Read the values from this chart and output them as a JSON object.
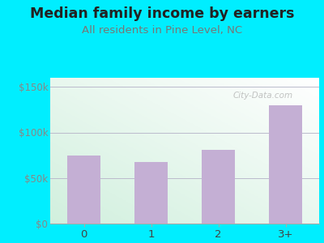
{
  "title": "Median family income by earners",
  "subtitle": "All residents in Pine Level, NC",
  "categories": [
    "0",
    "1",
    "2",
    "3+"
  ],
  "values": [
    75000,
    68000,
    81000,
    130000
  ],
  "bar_color": "#c4afd4",
  "ylim": [
    0,
    160000
  ],
  "yticks": [
    0,
    50000,
    100000,
    150000
  ],
  "ytick_labels": [
    "$0",
    "$50k",
    "$100k",
    "$150k"
  ],
  "background_outer": "#00eeff",
  "title_color": "#222222",
  "subtitle_color": "#777777",
  "title_fontsize": 12.5,
  "subtitle_fontsize": 9.5,
  "watermark": "City-Data.com",
  "tick_color": "#888888",
  "grid_color": "#bbbbcc"
}
